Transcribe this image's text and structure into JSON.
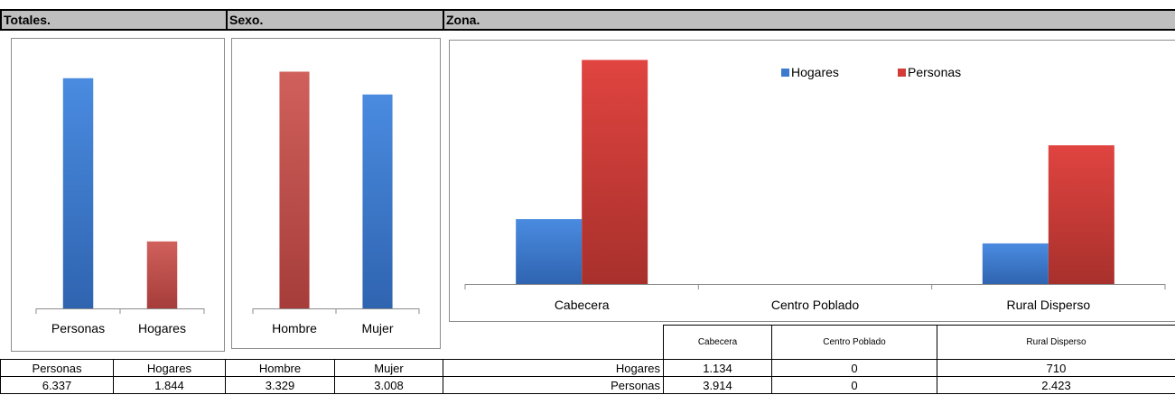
{
  "headers": {
    "totales": "Totales.",
    "sexo": "Sexo.",
    "zona": "Zona."
  },
  "colors": {
    "blue": "#3c7ad0",
    "red": "#c0504d",
    "red_bright": "#d23c38"
  },
  "chart_data": [
    {
      "type": "bar",
      "categories": [
        "Personas",
        "Hogares"
      ],
      "values": [
        6337,
        1844
      ],
      "colors": [
        "#3c7ad0",
        "#c0504d"
      ],
      "ylim": [
        0,
        7000
      ]
    },
    {
      "type": "bar",
      "categories": [
        "Hombre",
        "Mujer"
      ],
      "values": [
        3329,
        3008
      ],
      "colors": [
        "#c0504d",
        "#3c7ad0"
      ],
      "ylim": [
        0,
        3500
      ]
    },
    {
      "type": "bar",
      "categories": [
        "Cabecera",
        "Centro Poblado",
        "Rural Disperso"
      ],
      "series": [
        {
          "name": "Hogares",
          "values": [
            1134,
            0,
            710
          ],
          "color": "#3c7ad0"
        },
        {
          "name": "Personas",
          "values": [
            3914,
            0,
            2423
          ],
          "color": "#d23c38"
        }
      ],
      "legend": "top-right",
      "ylim": [
        0,
        4000
      ]
    }
  ],
  "tables": {
    "totales": {
      "headers": [
        "Personas",
        "Hogares"
      ],
      "values": [
        "6.337",
        "1.844"
      ]
    },
    "sexo": {
      "headers": [
        "Hombre",
        "Mujer"
      ],
      "values": [
        "3.329",
        "3.008"
      ]
    },
    "zona": {
      "headers": [
        "Cabecera",
        "Centro Poblado",
        "Rural Disperso"
      ],
      "rows": [
        {
          "label": "Hogares",
          "values": [
            "1.134",
            "0",
            "710"
          ]
        },
        {
          "label": "Personas",
          "values": [
            "3.914",
            "0",
            "2.423"
          ]
        }
      ]
    }
  }
}
